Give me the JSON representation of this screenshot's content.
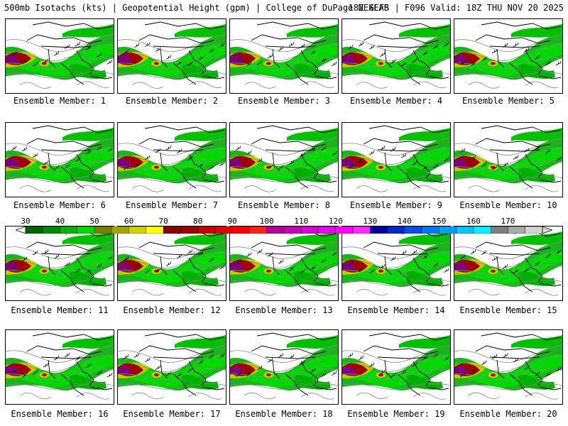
{
  "header": {
    "left": "500mb Isotachs (kts) | Geopotential Height (gpm) | College of DuPage NEXLAB",
    "right": "18Z GEFS | F096 Valid: 18Z THU NOV 20 2025"
  },
  "members": [
    "Ensemble Member: 1",
    "Ensemble Member: 2",
    "Ensemble Member: 3",
    "Ensemble Member: 4",
    "Ensemble Member: 5",
    "Ensemble Member: 6",
    "Ensemble Member: 7",
    "Ensemble Member: 8",
    "Ensemble Member: 9",
    "Ensemble Member: 10",
    "Ensemble Member: 11",
    "Ensemble Member: 12",
    "Ensemble Member: 13",
    "Ensemble Member: 14",
    "Ensemble Member: 15",
    "Ensemble Member: 16",
    "Ensemble Member: 17",
    "Ensemble Member: 18",
    "Ensemble Member: 19",
    "Ensemble Member: 20"
  ],
  "colorbar": {
    "labels": [
      "30",
      "40",
      "50",
      "60",
      "70",
      "80",
      "90",
      "100",
      "110",
      "120",
      "130",
      "140",
      "150",
      "160",
      "170"
    ],
    "colors": [
      "#006400",
      "#008c00",
      "#00b400",
      "#00dc00",
      "#7d7d00",
      "#a5a500",
      "#d2d200",
      "#ffff00",
      "#8b0000",
      "#a00000",
      "#c80000",
      "#e60000",
      "#ff0000",
      "#ff1e1e",
      "#b40096",
      "#c800b4",
      "#dc00dc",
      "#f000f0",
      "#ff00ff",
      "#ff28ff",
      "#0000a0",
      "#0028c8",
      "#0050e6",
      "#0078ff",
      "#00a0ff",
      "#00c8ff",
      "#00f0ff",
      "#7f7f7f",
      "#a9a9a9",
      "#d3d3d3"
    ]
  }
}
